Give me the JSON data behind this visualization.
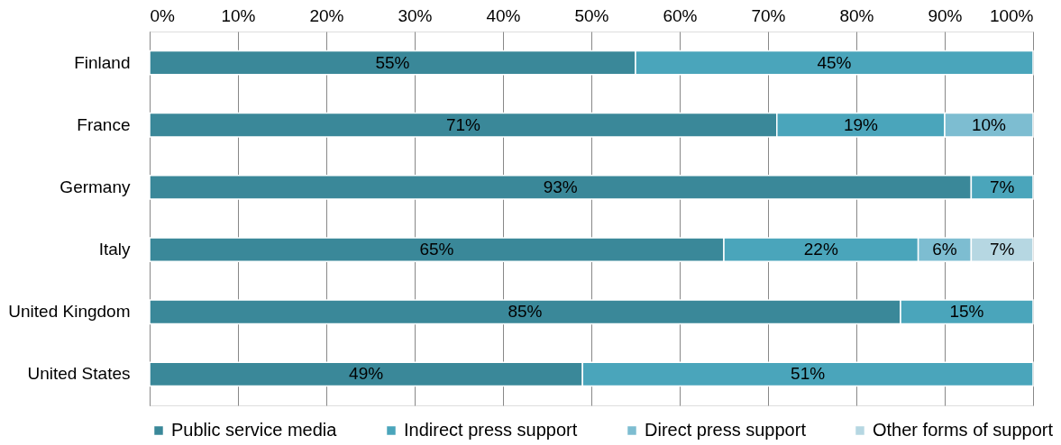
{
  "chart_data": {
    "type": "bar",
    "orientation": "horizontal",
    "stacked": true,
    "categories": [
      "Finland",
      "France",
      "Germany",
      "Italy",
      "United Kingdom",
      "United States"
    ],
    "series": [
      {
        "name": "Public service media",
        "color": "#3a8899",
        "values": [
          55,
          71,
          93,
          65,
          85,
          49
        ],
        "value_labels": [
          "55%",
          "71%",
          "93%",
          "65%",
          "85%",
          "49%"
        ]
      },
      {
        "name": "Indirect press support",
        "color": "#4aa5bb",
        "values": [
          45,
          19,
          7,
          22,
          15,
          51
        ],
        "value_labels": [
          "45%",
          "19%",
          "7%",
          "22%",
          "15%",
          "51%"
        ]
      },
      {
        "name": "Direct press support",
        "color": "#7dbdd1",
        "values": [
          null,
          10,
          null,
          6,
          null,
          null
        ],
        "value_labels": [
          null,
          "10%",
          null,
          "6%",
          null,
          null
        ]
      },
      {
        "name": "Other forms of support",
        "color": "#b6d7e2",
        "values": [
          null,
          null,
          null,
          7,
          null,
          null
        ],
        "value_labels": [
          null,
          null,
          null,
          "7%",
          null,
          null
        ]
      }
    ],
    "xlim": [
      0,
      100
    ],
    "xticks": [
      {
        "value": 0,
        "label": "0%"
      },
      {
        "value": 10,
        "label": "10%"
      },
      {
        "value": 20,
        "label": "20%"
      },
      {
        "value": 30,
        "label": "30%"
      },
      {
        "value": 40,
        "label": "40%"
      },
      {
        "value": 50,
        "label": "50%"
      },
      {
        "value": 60,
        "label": "60%"
      },
      {
        "value": 70,
        "label": "70%"
      },
      {
        "value": 80,
        "label": "80%"
      },
      {
        "value": 90,
        "label": "90%"
      },
      {
        "value": 100,
        "label": "100%"
      }
    ],
    "grid": "x",
    "legend": "bottom"
  }
}
